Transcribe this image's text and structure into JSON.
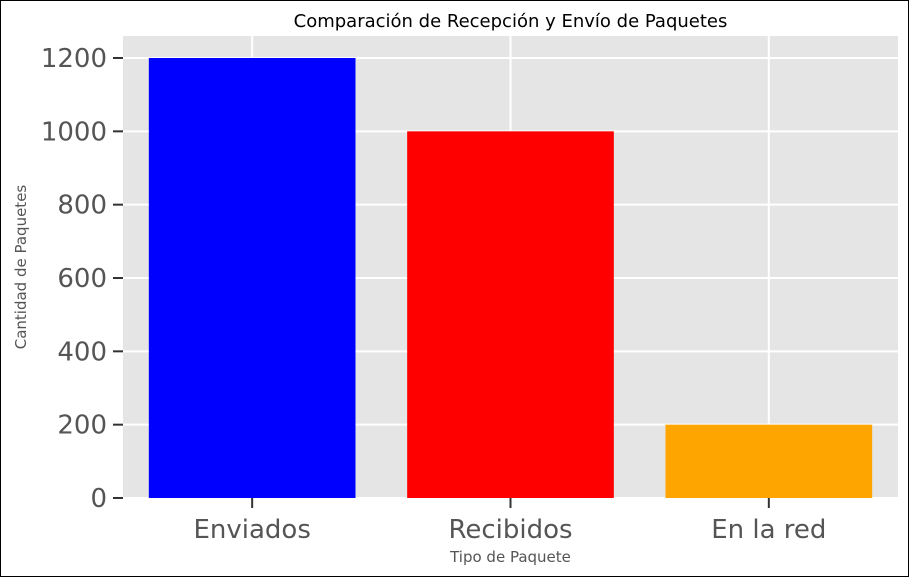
{
  "chart_data": {
    "type": "bar",
    "title": "Comparación de Recepción y Envío de Paquetes",
    "xlabel": "Tipo de Paquete",
    "ylabel": "Cantidad de Paquetes",
    "categories": [
      "Enviados",
      "Recibidos",
      "En la red"
    ],
    "values": [
      1200,
      1000,
      200
    ],
    "colors": [
      "#0000ff",
      "#ff0000",
      "#ffa500"
    ],
    "ylim": [
      0,
      1260
    ],
    "yticks": [
      0,
      200,
      400,
      600,
      800,
      1000,
      1200
    ],
    "grid": true,
    "plot_background": "#e5e5e5",
    "grid_color": "#ffffff"
  }
}
